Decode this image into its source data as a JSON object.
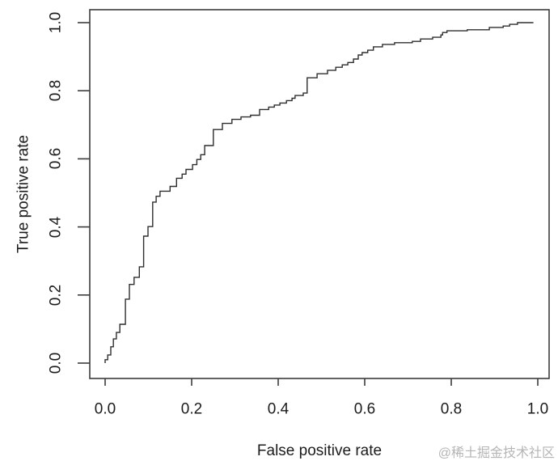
{
  "figure": {
    "watermark": "@稀土掘金技术社区"
  },
  "chart_data": {
    "type": "line",
    "subtype": "roc-step-curve",
    "title": "",
    "xlabel": "False positive rate",
    "ylabel": "True positive rate",
    "xlim": [
      0.0,
      1.0
    ],
    "ylim": [
      0.0,
      1.0
    ],
    "grid": false,
    "legend_position": "none",
    "x_ticks": [
      0.0,
      0.2,
      0.4,
      0.6,
      0.8,
      1.0
    ],
    "x_tick_labels": [
      "0.0",
      "0.2",
      "0.4",
      "0.6",
      "0.8",
      "1.0"
    ],
    "y_ticks": [
      0.0,
      0.2,
      0.4,
      0.6,
      0.8,
      1.0
    ],
    "y_tick_labels": [
      "0.0",
      "0.2",
      "0.4",
      "0.6",
      "0.8",
      "1.0"
    ],
    "line_color": "#2e2e2e",
    "axis_color": "#3c3c3c",
    "text_color": "#1b1b1b",
    "watermark_color": "#b5b5b5",
    "background_color": "#ffffff",
    "series": [
      {
        "name": "ROC curve",
        "step": true,
        "points": [
          [
            0.0,
            0.0
          ],
          [
            0.0,
            0.01
          ],
          [
            0.006,
            0.01
          ],
          [
            0.006,
            0.024
          ],
          [
            0.013,
            0.024
          ],
          [
            0.013,
            0.048
          ],
          [
            0.019,
            0.048
          ],
          [
            0.019,
            0.071
          ],
          [
            0.026,
            0.071
          ],
          [
            0.026,
            0.09
          ],
          [
            0.034,
            0.09
          ],
          [
            0.034,
            0.114
          ],
          [
            0.047,
            0.114
          ],
          [
            0.047,
            0.188
          ],
          [
            0.056,
            0.188
          ],
          [
            0.056,
            0.231
          ],
          [
            0.067,
            0.231
          ],
          [
            0.067,
            0.252
          ],
          [
            0.079,
            0.252
          ],
          [
            0.079,
            0.283
          ],
          [
            0.089,
            0.283
          ],
          [
            0.089,
            0.373
          ],
          [
            0.099,
            0.373
          ],
          [
            0.099,
            0.401
          ],
          [
            0.11,
            0.401
          ],
          [
            0.11,
            0.473
          ],
          [
            0.118,
            0.473
          ],
          [
            0.118,
            0.49
          ],
          [
            0.127,
            0.49
          ],
          [
            0.127,
            0.505
          ],
          [
            0.15,
            0.505
          ],
          [
            0.15,
            0.519
          ],
          [
            0.165,
            0.519
          ],
          [
            0.165,
            0.543
          ],
          [
            0.178,
            0.543
          ],
          [
            0.178,
            0.555
          ],
          [
            0.187,
            0.555
          ],
          [
            0.187,
            0.569
          ],
          [
            0.202,
            0.569
          ],
          [
            0.202,
            0.583
          ],
          [
            0.212,
            0.583
          ],
          [
            0.212,
            0.598
          ],
          [
            0.221,
            0.598
          ],
          [
            0.221,
            0.612
          ],
          [
            0.23,
            0.612
          ],
          [
            0.23,
            0.639
          ],
          [
            0.25,
            0.639
          ],
          [
            0.25,
            0.686
          ],
          [
            0.271,
            0.686
          ],
          [
            0.271,
            0.704
          ],
          [
            0.293,
            0.704
          ],
          [
            0.293,
            0.716
          ],
          [
            0.314,
            0.716
          ],
          [
            0.314,
            0.723
          ],
          [
            0.336,
            0.723
          ],
          [
            0.336,
            0.728
          ],
          [
            0.357,
            0.728
          ],
          [
            0.357,
            0.745
          ],
          [
            0.378,
            0.745
          ],
          [
            0.378,
            0.752
          ],
          [
            0.391,
            0.752
          ],
          [
            0.391,
            0.758
          ],
          [
            0.404,
            0.758
          ],
          [
            0.404,
            0.764
          ],
          [
            0.419,
            0.764
          ],
          [
            0.419,
            0.771
          ],
          [
            0.432,
            0.771
          ],
          [
            0.432,
            0.778
          ],
          [
            0.439,
            0.778
          ],
          [
            0.439,
            0.786
          ],
          [
            0.458,
            0.786
          ],
          [
            0.458,
            0.793
          ],
          [
            0.467,
            0.793
          ],
          [
            0.467,
            0.838
          ],
          [
            0.49,
            0.838
          ],
          [
            0.49,
            0.85
          ],
          [
            0.514,
            0.85
          ],
          [
            0.514,
            0.86
          ],
          [
            0.533,
            0.86
          ],
          [
            0.533,
            0.869
          ],
          [
            0.548,
            0.869
          ],
          [
            0.548,
            0.876
          ],
          [
            0.561,
            0.876
          ],
          [
            0.561,
            0.883
          ],
          [
            0.574,
            0.883
          ],
          [
            0.574,
            0.893
          ],
          [
            0.585,
            0.893
          ],
          [
            0.585,
            0.905
          ],
          [
            0.594,
            0.905
          ],
          [
            0.594,
            0.912
          ],
          [
            0.607,
            0.912
          ],
          [
            0.607,
            0.919
          ],
          [
            0.62,
            0.919
          ],
          [
            0.62,
            0.929
          ],
          [
            0.641,
            0.929
          ],
          [
            0.641,
            0.936
          ],
          [
            0.669,
            0.936
          ],
          [
            0.669,
            0.941
          ],
          [
            0.71,
            0.941
          ],
          [
            0.71,
            0.945
          ],
          [
            0.729,
            0.945
          ],
          [
            0.729,
            0.952
          ],
          [
            0.757,
            0.952
          ],
          [
            0.757,
            0.957
          ],
          [
            0.776,
            0.957
          ],
          [
            0.776,
            0.964
          ],
          [
            0.78,
            0.964
          ],
          [
            0.78,
            0.971
          ],
          [
            0.79,
            0.971
          ],
          [
            0.79,
            0.976
          ],
          [
            0.837,
            0.976
          ],
          [
            0.837,
            0.979
          ],
          [
            0.888,
            0.979
          ],
          [
            0.888,
            0.986
          ],
          [
            0.92,
            0.986
          ],
          [
            0.92,
            0.99
          ],
          [
            0.935,
            0.99
          ],
          [
            0.935,
            0.995
          ],
          [
            0.953,
            0.995
          ],
          [
            0.953,
            1.0
          ],
          [
            0.99,
            1.0
          ]
        ]
      }
    ]
  }
}
